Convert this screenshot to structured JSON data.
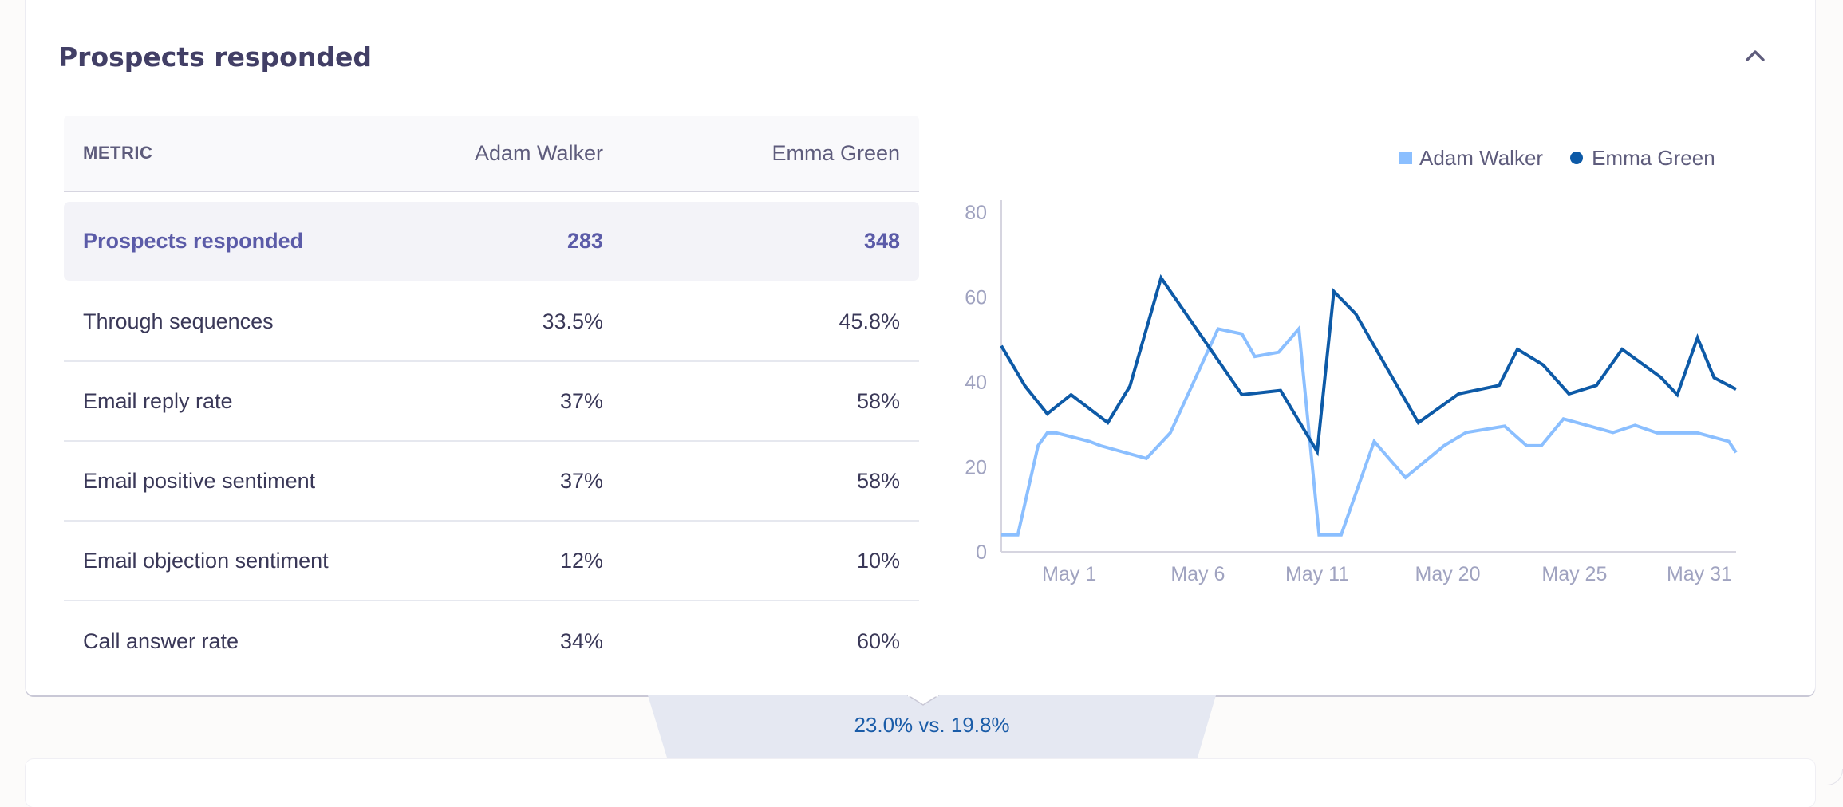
{
  "panel": {
    "title": "Prospects responded",
    "collapse_icon": "chevron-up-icon"
  },
  "table": {
    "headers": {
      "metric": "METRIC",
      "a": "Adam Walker",
      "b": "Emma Green"
    },
    "rows": [
      {
        "metric": "Prospects responded",
        "a": "283",
        "b": "348",
        "highlighted": true
      },
      {
        "metric": "Through sequences",
        "a": "33.5%",
        "b": "45.8%"
      },
      {
        "metric": "Email reply rate",
        "a": "37%",
        "b": "58%"
      },
      {
        "metric": "Email positive sentiment",
        "a": "37%",
        "b": "58%"
      },
      {
        "metric": "Email objection sentiment",
        "a": "12%",
        "b": "10%"
      },
      {
        "metric": "Call answer rate",
        "a": "34%",
        "b": "60%"
      }
    ]
  },
  "footer": {
    "comparison": "23.0% vs. 19.8%"
  },
  "colors": {
    "adam": "#8bbfff",
    "emma": "#0d5aa7",
    "title": "#423f66",
    "highlight_text": "#5b5ba8",
    "footer_text": "#1a5ca8"
  },
  "chart_data": {
    "type": "line",
    "title": "",
    "xlabel": "",
    "ylabel": "",
    "ylim": [
      0,
      80
    ],
    "xlim": [
      0,
      40
    ],
    "yticks": [
      0,
      20,
      40,
      60,
      80
    ],
    "xticks": [
      {
        "x": 3.7,
        "label": "May 1"
      },
      {
        "x": 10.7,
        "label": "May 6"
      },
      {
        "x": 17.2,
        "label": "May 11"
      },
      {
        "x": 24.3,
        "label": "May 20"
      },
      {
        "x": 31.2,
        "label": "May 25"
      },
      {
        "x": 38.0,
        "label": "May 31"
      }
    ],
    "grid": false,
    "legend_position": "top-right",
    "series": [
      {
        "name": "Adam Walker",
        "marker": "square",
        "color": "#8bbfff",
        "x": [
          0,
          0.9,
          2.0,
          2.5,
          3.0,
          4.8,
          5.4,
          7.9,
          9.2,
          11.8,
          13.1,
          13.8,
          15.1,
          16.2,
          17.3,
          18.5,
          20.3,
          22.0,
          24.1,
          25.3,
          27.4,
          28.6,
          29.4,
          30.6,
          33.3,
          34.5,
          35.7,
          37.9,
          39.6,
          40
        ],
        "y": [
          4,
          4,
          25,
          28,
          28,
          26,
          25,
          22,
          28,
          52.5,
          51.3,
          46,
          47,
          52.5,
          4,
          4,
          26,
          17.5,
          25,
          28.1,
          29.6,
          25,
          25,
          31.3,
          28.1,
          29.8,
          28,
          28,
          26,
          23.4
        ]
      },
      {
        "name": "Emma Green",
        "marker": "circle",
        "color": "#0d5aa7",
        "x": [
          0,
          1.3,
          2.5,
          3.8,
          5.8,
          7.0,
          8.7,
          13.1,
          15.2,
          17.2,
          18.1,
          19.3,
          22.7,
          24.9,
          27.1,
          28.1,
          29.5,
          30.9,
          32.4,
          33.8,
          35.9,
          36.8,
          37.9,
          38.8,
          40
        ],
        "y": [
          48.5,
          39,
          32.5,
          37,
          30.4,
          39,
          64.5,
          37,
          38,
          23.6,
          61.3,
          56,
          30.4,
          37.2,
          39.2,
          47.7,
          44,
          37.2,
          39.2,
          47.7,
          41.1,
          37,
          50.4,
          41,
          38.3
        ]
      }
    ]
  }
}
